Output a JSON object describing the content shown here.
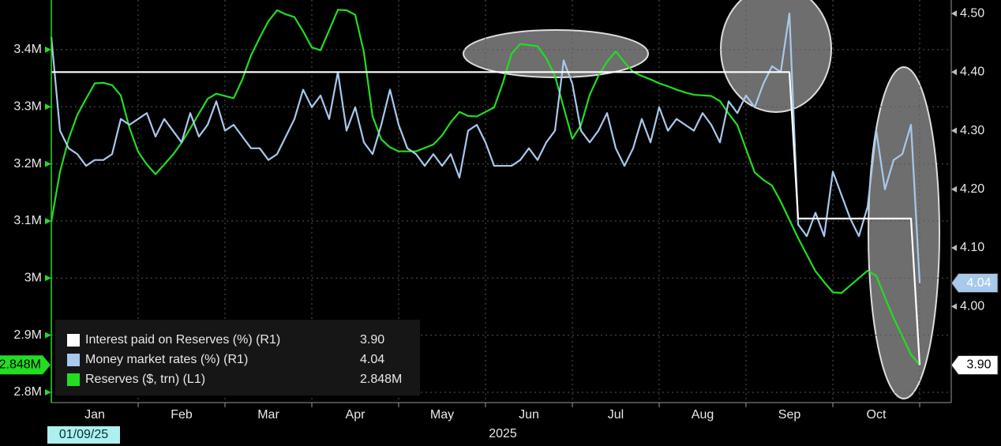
{
  "chart_data": {
    "type": "line",
    "categories": [
      null,
      null,
      null,
      null,
      null,
      "Jan",
      null,
      null,
      null,
      null,
      null,
      null,
      null,
      null,
      null,
      "Feb",
      null,
      null,
      null,
      null,
      null,
      null,
      null,
      null,
      null,
      "Mar",
      null,
      null,
      null,
      null,
      null,
      null,
      null,
      null,
      null,
      "Apr",
      null,
      null,
      null,
      null,
      null,
      null,
      null,
      null,
      null,
      "May",
      null,
      null,
      null,
      null,
      null,
      null,
      null,
      null,
      null,
      "Jun",
      null,
      null,
      null,
      null,
      null,
      null,
      null,
      null,
      null,
      "Jul",
      null,
      null,
      null,
      null,
      null,
      null,
      null,
      null,
      null,
      "Aug",
      null,
      null,
      null,
      null,
      null,
      null,
      null,
      null,
      null,
      "Sep",
      null,
      null,
      null,
      null,
      null,
      null,
      null,
      null,
      null,
      "Oct",
      null,
      null,
      null,
      null,
      null
    ],
    "start_label": "01/09/25",
    "x_label": "2025",
    "series": [
      {
        "name": "Interest paid on Reserves (%) (R1)",
        "color": "#ffffff",
        "axis": "y2",
        "last_label": "3.90",
        "values": [
          4.4,
          4.4,
          4.4,
          4.4,
          4.4,
          4.4,
          4.4,
          4.4,
          4.4,
          4.4,
          4.4,
          4.4,
          4.4,
          4.4,
          4.4,
          4.4,
          4.4,
          4.4,
          4.4,
          4.4,
          4.4,
          4.4,
          4.4,
          4.4,
          4.4,
          4.4,
          4.4,
          4.4,
          4.4,
          4.4,
          4.4,
          4.4,
          4.4,
          4.4,
          4.4,
          4.4,
          4.4,
          4.4,
          4.4,
          4.4,
          4.4,
          4.4,
          4.4,
          4.4,
          4.4,
          4.4,
          4.4,
          4.4,
          4.4,
          4.4,
          4.4,
          4.4,
          4.4,
          4.4,
          4.4,
          4.4,
          4.4,
          4.4,
          4.4,
          4.4,
          4.4,
          4.4,
          4.4,
          4.4,
          4.4,
          4.4,
          4.4,
          4.4,
          4.4,
          4.4,
          4.4,
          4.4,
          4.4,
          4.4,
          4.4,
          4.4,
          4.4,
          4.4,
          4.4,
          4.4,
          4.4,
          4.4,
          4.4,
          4.4,
          4.4,
          4.4,
          4.15,
          4.15,
          4.15,
          4.15,
          4.15,
          4.15,
          4.15,
          4.15,
          4.15,
          4.15,
          4.15,
          4.15,
          4.15,
          4.15,
          3.9
        ]
      },
      {
        "name": "Money market rates (%) (R1)",
        "color": "#a8c8ec",
        "axis": "y2",
        "last_label": "4.04",
        "values": [
          4.46,
          4.3,
          4.27,
          4.26,
          4.24,
          4.25,
          4.25,
          4.26,
          4.32,
          4.31,
          4.32,
          4.33,
          4.29,
          4.32,
          4.3,
          4.28,
          4.33,
          4.29,
          4.31,
          4.35,
          4.3,
          4.31,
          4.29,
          4.27,
          4.27,
          4.25,
          4.26,
          4.29,
          4.32,
          4.37,
          4.34,
          4.36,
          4.32,
          4.4,
          4.3,
          4.34,
          4.28,
          4.26,
          4.31,
          4.37,
          4.31,
          4.27,
          4.26,
          4.24,
          4.26,
          4.24,
          4.26,
          4.22,
          4.3,
          4.31,
          4.28,
          4.24,
          4.24,
          4.24,
          4.25,
          4.27,
          4.25,
          4.28,
          4.3,
          4.42,
          4.38,
          4.3,
          4.28,
          4.3,
          4.33,
          4.27,
          4.24,
          4.27,
          4.32,
          4.28,
          4.34,
          4.3,
          4.32,
          4.31,
          4.3,
          4.33,
          4.31,
          4.28,
          4.35,
          4.33,
          4.36,
          4.34,
          4.38,
          4.41,
          4.4,
          4.5,
          4.14,
          4.12,
          4.16,
          4.12,
          4.23,
          4.19,
          4.15,
          4.12,
          4.17,
          4.3,
          4.2,
          4.25,
          4.26,
          4.31,
          4.04
        ]
      },
      {
        "name": "Reserves ($, trn) (L1)",
        "color": "#22dd22",
        "axis": "y",
        "last_label": "2.848M",
        "values": [
          3.099,
          3.186,
          3.244,
          3.286,
          3.314,
          3.341,
          3.342,
          3.338,
          3.32,
          3.263,
          3.221,
          3.199,
          3.182,
          3.199,
          3.216,
          3.237,
          3.262,
          3.288,
          3.314,
          3.323,
          3.319,
          3.315,
          3.348,
          3.39,
          3.421,
          3.45,
          3.469,
          3.462,
          3.457,
          3.432,
          3.404,
          3.399,
          3.434,
          3.47,
          3.469,
          3.461,
          3.395,
          3.283,
          3.243,
          3.229,
          3.222,
          3.222,
          3.222,
          3.228,
          3.234,
          3.25,
          3.273,
          3.291,
          3.284,
          3.283,
          3.291,
          3.299,
          3.342,
          3.393,
          3.41,
          3.408,
          3.406,
          3.385,
          3.354,
          3.299,
          3.244,
          3.268,
          3.321,
          3.354,
          3.379,
          3.397,
          3.378,
          3.361,
          3.354,
          3.348,
          3.341,
          3.336,
          3.33,
          3.325,
          3.321,
          3.32,
          3.319,
          3.31,
          3.288,
          3.268,
          3.226,
          3.185,
          3.172,
          3.162,
          3.134,
          3.102,
          3.07,
          3.041,
          3.012,
          2.993,
          2.975,
          2.974,
          2.987,
          3.0,
          3.013,
          3.004,
          2.966,
          2.93,
          2.898,
          2.866,
          2.848
        ]
      }
    ],
    "ylim": [
      2.782,
      3.487
    ],
    "yticks": [
      {
        "value": 2.8,
        "label": "2.8M"
      },
      {
        "value": 2.9,
        "label": "2.9M"
      },
      {
        "value": 3,
        "label": "3M"
      },
      {
        "value": 3.1,
        "label": "3.1M"
      },
      {
        "value": 3.2,
        "label": "3.2M"
      },
      {
        "value": 3.3,
        "label": "3.3M"
      },
      {
        "value": 3.4,
        "label": "3.4M"
      }
    ],
    "y2lim": [
      3.836,
      4.523
    ],
    "y2ticks": [
      {
        "value": 4.0,
        "label": "4.00"
      },
      {
        "value": 4.1,
        "label": "4.10"
      },
      {
        "value": 4.2,
        "label": "4.20"
      },
      {
        "value": 4.3,
        "label": "4.30"
      },
      {
        "value": 4.4,
        "label": "4.40"
      },
      {
        "value": 4.5,
        "label": "4.50"
      }
    ],
    "grid": true,
    "legend": "lower left"
  }
}
